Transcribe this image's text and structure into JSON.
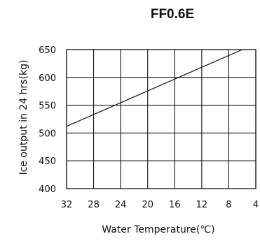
{
  "chart_data": {
    "type": "line",
    "title": "FF0.6E",
    "xlabel": "Water Temperature(℃)",
    "ylabel": "Ice output in 24 hrs(kg)",
    "x_ticks": [
      "32",
      "28",
      "24",
      "20",
      "16",
      "12",
      "8",
      "4"
    ],
    "y_ticks": [
      "400",
      "450",
      "500",
      "550",
      "600",
      "650"
    ],
    "xlim": [
      32,
      4
    ],
    "ylim": [
      400,
      650
    ],
    "grid": true,
    "series": [
      {
        "x": [
          32,
          6
        ],
        "y": [
          512,
          650
        ]
      }
    ]
  }
}
